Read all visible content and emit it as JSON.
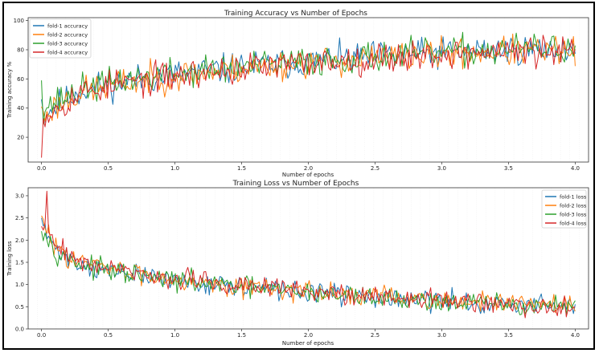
{
  "chart_data": [
    {
      "type": "line",
      "title": "Training Accuracy vs Number of Epochs",
      "xlabel": "Number of epochs",
      "ylabel": "Training accuracy %",
      "xlim": [
        -0.1,
        4.1
      ],
      "ylim": [
        3,
        102
      ],
      "xticks": [
        "0.0",
        "0.5",
        "1.0",
        "1.5",
        "2.0",
        "2.5",
        "3.0",
        "3.5",
        "4.0"
      ],
      "xtick_values": [
        0,
        0.5,
        1,
        1.5,
        2,
        2.5,
        3,
        3.5,
        4
      ],
      "yticks": [
        "20",
        "40",
        "60",
        "80",
        "100"
      ],
      "ytick_values": [
        20,
        40,
        60,
        80,
        100
      ],
      "legend_position": "top-left",
      "x_range": [
        0,
        4
      ],
      "points_per_series": 300,
      "series": [
        {
          "name": "fold-1 accuracy",
          "color": "#1f77b4",
          "seed": 11,
          "anchors": [
            [
              0,
              35
            ],
            [
              0.05,
              38
            ],
            [
              0.3,
              52
            ],
            [
              0.6,
              58
            ],
            [
              1,
              63
            ],
            [
              1.5,
              68
            ],
            [
              2,
              72
            ],
            [
              2.5,
              75
            ],
            [
              3,
              78
            ],
            [
              3.5,
              80
            ],
            [
              4,
              80
            ]
          ],
          "noise": 9,
          "spikes": [
            [
              0,
              46
            ]
          ]
        },
        {
          "name": "fold-2 accuracy",
          "color": "#ff7f0e",
          "seed": 23,
          "anchors": [
            [
              0,
              30
            ],
            [
              0.05,
              38
            ],
            [
              0.3,
              51
            ],
            [
              0.6,
              57
            ],
            [
              1,
              62
            ],
            [
              1.5,
              67
            ],
            [
              2,
              71
            ],
            [
              2.5,
              74
            ],
            [
              3,
              77
            ],
            [
              3.5,
              79
            ],
            [
              4,
              79
            ]
          ],
          "noise": 9,
          "spikes": [
            [
              0,
              41
            ]
          ]
        },
        {
          "name": "fold-3 accuracy",
          "color": "#2ca02c",
          "seed": 37,
          "anchors": [
            [
              0,
              40
            ],
            [
              0.05,
              42
            ],
            [
              0.3,
              53
            ],
            [
              0.6,
              59
            ],
            [
              1,
              64
            ],
            [
              1.5,
              68
            ],
            [
              2,
              72
            ],
            [
              2.5,
              75
            ],
            [
              3,
              78
            ],
            [
              3.5,
              80
            ],
            [
              4,
              81
            ]
          ],
          "noise": 9,
          "spikes": [
            [
              0,
              59
            ]
          ]
        },
        {
          "name": "fold-4 accuracy",
          "color": "#d62728",
          "seed": 53,
          "anchors": [
            [
              0,
              30
            ],
            [
              0.05,
              37
            ],
            [
              0.3,
              51
            ],
            [
              0.6,
              57
            ],
            [
              1,
              62
            ],
            [
              1.5,
              67
            ],
            [
              2,
              71
            ],
            [
              2.5,
              74
            ],
            [
              3,
              77
            ],
            [
              3.5,
              79
            ],
            [
              4,
              78
            ]
          ],
          "noise": 9,
          "spikes": [
            [
              0,
              6
            ]
          ]
        }
      ]
    },
    {
      "type": "line",
      "title": "Training Loss vs Number of Epochs",
      "xlabel": "Number of epochs",
      "ylabel": "Training loss",
      "xlim": [
        -0.1,
        4.1
      ],
      "ylim": [
        0,
        3.18
      ],
      "xticks": [
        "0.0",
        "0.5",
        "1.0",
        "1.5",
        "2.0",
        "2.5",
        "3.0",
        "3.5",
        "4.0"
      ],
      "xtick_values": [
        0,
        0.5,
        1,
        1.5,
        2,
        2.5,
        3,
        3.5,
        4
      ],
      "yticks": [
        "0.0",
        "0.5",
        "1.0",
        "1.5",
        "2.0",
        "2.5",
        "3.0"
      ],
      "ytick_values": [
        0,
        0.5,
        1,
        1.5,
        2,
        2.5,
        3
      ],
      "legend_position": "top-right",
      "x_range": [
        0,
        4
      ],
      "points_per_series": 300,
      "series": [
        {
          "name": "fold-1 loss",
          "color": "#1f77b4",
          "seed": 71,
          "anchors": [
            [
              0,
              2.35
            ],
            [
              0.1,
              1.8
            ],
            [
              0.3,
              1.45
            ],
            [
              0.6,
              1.25
            ],
            [
              1,
              1.1
            ],
            [
              1.5,
              0.95
            ],
            [
              2,
              0.82
            ],
            [
              2.5,
              0.72
            ],
            [
              3,
              0.62
            ],
            [
              3.5,
              0.55
            ],
            [
              4,
              0.52
            ]
          ],
          "noise": 0.2,
          "spikes": [
            [
              0,
              2.5
            ]
          ]
        },
        {
          "name": "fold-2 loss",
          "color": "#ff7f0e",
          "seed": 83,
          "anchors": [
            [
              0,
              2.4
            ],
            [
              0.1,
              1.85
            ],
            [
              0.3,
              1.5
            ],
            [
              0.6,
              1.3
            ],
            [
              1,
              1.12
            ],
            [
              1.5,
              0.97
            ],
            [
              2,
              0.84
            ],
            [
              2.5,
              0.74
            ],
            [
              3,
              0.64
            ],
            [
              3.5,
              0.56
            ],
            [
              4,
              0.53
            ]
          ],
          "noise": 0.2,
          "spikes": [
            [
              0,
              2.55
            ]
          ]
        },
        {
          "name": "fold-3 loss",
          "color": "#2ca02c",
          "seed": 97,
          "anchors": [
            [
              0,
              2.3
            ],
            [
              0.1,
              1.78
            ],
            [
              0.3,
              1.44
            ],
            [
              0.6,
              1.24
            ],
            [
              1,
              1.09
            ],
            [
              1.5,
              0.94
            ],
            [
              2,
              0.81
            ],
            [
              2.5,
              0.71
            ],
            [
              3,
              0.61
            ],
            [
              3.5,
              0.54
            ],
            [
              4,
              0.5
            ]
          ],
          "noise": 0.2,
          "spikes": [
            [
              0,
              2.2
            ]
          ]
        },
        {
          "name": "fold-4 loss",
          "color": "#d62728",
          "seed": 109,
          "anchors": [
            [
              0,
              2.45
            ],
            [
              0.1,
              1.88
            ],
            [
              0.3,
              1.52
            ],
            [
              0.6,
              1.3
            ],
            [
              1,
              1.13
            ],
            [
              1.5,
              0.97
            ],
            [
              2,
              0.84
            ],
            [
              2.5,
              0.74
            ],
            [
              3,
              0.63
            ],
            [
              3.5,
              0.56
            ],
            [
              4,
              0.52
            ]
          ],
          "noise": 0.2,
          "spikes": [
            [
              0.04,
              3.1
            ]
          ]
        }
      ]
    }
  ]
}
